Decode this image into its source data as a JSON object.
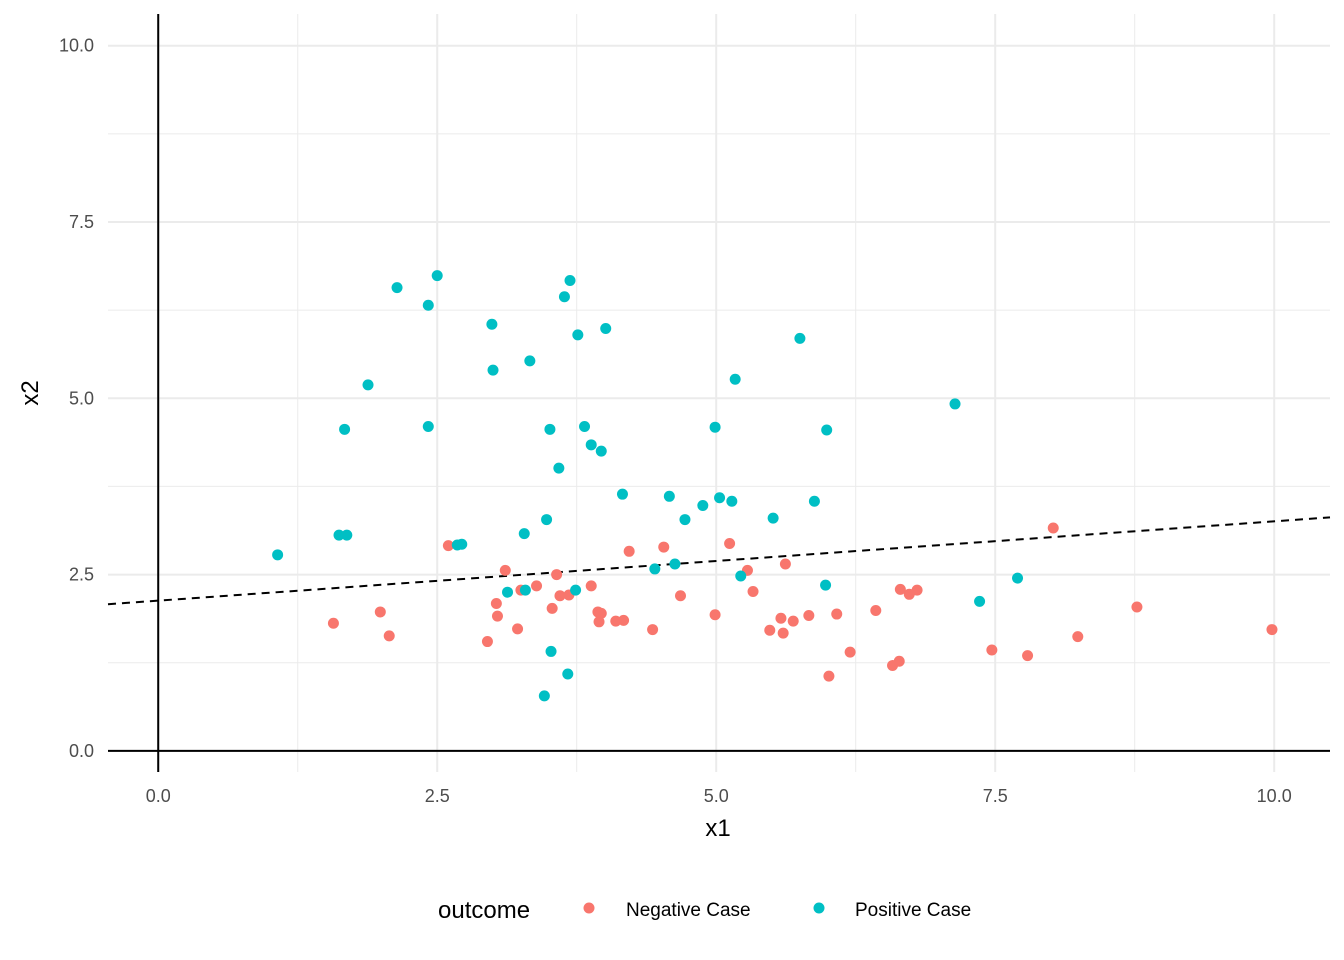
{
  "chart_data": {
    "type": "scatter",
    "title": "",
    "xlabel": "x1",
    "ylabel": "x2",
    "xlim": [
      -0.45,
      10.5
    ],
    "ylim": [
      -0.3,
      10.45
    ],
    "x_major_ticks": [
      0,
      2.5,
      5,
      7.5,
      10
    ],
    "x_tick_labels": [
      "0.0",
      "2.5",
      "5.0",
      "7.5",
      "10.0"
    ],
    "y_major_ticks": [
      0,
      2.5,
      5,
      7.5,
      10
    ],
    "y_tick_labels": [
      "0.0",
      "2.5",
      "5.0",
      "7.5",
      "10.0"
    ],
    "x_minor_ticks": [
      1.25,
      3.75,
      6.25,
      8.75
    ],
    "y_minor_ticks": [
      1.25,
      3.75,
      6.25,
      8.75
    ],
    "grid": true,
    "reference_lines": {
      "x0": true,
      "y0": true
    },
    "decision_boundary": {
      "style": "dashed",
      "intercept": 2.13,
      "slope": 0.1125
    },
    "legend": {
      "title": "outcome",
      "position": "bottom",
      "entries": [
        {
          "label": "Negative Case",
          "color": "#F8766D"
        },
        {
          "label": "Positive Case",
          "color": "#00BFC4"
        }
      ]
    },
    "series": [
      {
        "name": "Negative Case",
        "color": "#F8766D",
        "points": [
          [
            1.57,
            1.81
          ],
          [
            1.99,
            1.97
          ],
          [
            2.07,
            1.63
          ],
          [
            2.6,
            2.91
          ],
          [
            2.95,
            1.55
          ],
          [
            3.03,
            2.09
          ],
          [
            3.04,
            1.91
          ],
          [
            3.11,
            2.56
          ],
          [
            3.22,
            1.73
          ],
          [
            3.25,
            2.28
          ],
          [
            3.39,
            2.34
          ],
          [
            3.53,
            2.02
          ],
          [
            3.57,
            2.5
          ],
          [
            3.6,
            2.2
          ],
          [
            3.68,
            2.21
          ],
          [
            3.88,
            2.34
          ],
          [
            3.94,
            1.97
          ],
          [
            3.95,
            1.83
          ],
          [
            3.97,
            1.95
          ],
          [
            4.1,
            1.84
          ],
          [
            4.17,
            1.85
          ],
          [
            4.22,
            2.83
          ],
          [
            4.43,
            1.72
          ],
          [
            4.53,
            2.89
          ],
          [
            4.68,
            2.2
          ],
          [
            4.99,
            1.93
          ],
          [
            5.12,
            2.94
          ],
          [
            5.28,
            2.56
          ],
          [
            5.33,
            2.26
          ],
          [
            5.48,
            1.71
          ],
          [
            5.58,
            1.88
          ],
          [
            5.6,
            1.67
          ],
          [
            5.62,
            2.65
          ],
          [
            5.69,
            1.84
          ],
          [
            5.83,
            1.92
          ],
          [
            6.01,
            1.06
          ],
          [
            6.08,
            1.94
          ],
          [
            6.2,
            1.4
          ],
          [
            6.43,
            1.99
          ],
          [
            6.58,
            1.21
          ],
          [
            6.64,
            1.27
          ],
          [
            6.65,
            2.29
          ],
          [
            6.73,
            2.22
          ],
          [
            6.8,
            2.28
          ],
          [
            7.47,
            1.43
          ],
          [
            7.79,
            1.35
          ],
          [
            8.02,
            3.16
          ],
          [
            8.24,
            1.62
          ],
          [
            8.77,
            2.04
          ],
          [
            9.98,
            1.72
          ]
        ]
      },
      {
        "name": "Positive Case",
        "color": "#00BFC4",
        "points": [
          [
            1.07,
            2.78
          ],
          [
            1.62,
            3.06
          ],
          [
            1.67,
            4.56
          ],
          [
            1.69,
            3.06
          ],
          [
            1.88,
            5.19
          ],
          [
            2.14,
            6.57
          ],
          [
            2.42,
            6.32
          ],
          [
            2.42,
            4.6
          ],
          [
            2.5,
            6.74
          ],
          [
            2.68,
            2.92
          ],
          [
            2.72,
            2.93
          ],
          [
            2.99,
            6.05
          ],
          [
            3.0,
            5.4
          ],
          [
            3.13,
            2.25
          ],
          [
            3.28,
            3.08
          ],
          [
            3.29,
            2.28
          ],
          [
            3.33,
            5.53
          ],
          [
            3.46,
            0.78
          ],
          [
            3.48,
            3.28
          ],
          [
            3.51,
            4.56
          ],
          [
            3.52,
            1.41
          ],
          [
            3.59,
            4.01
          ],
          [
            3.64,
            6.44
          ],
          [
            3.67,
            1.09
          ],
          [
            3.69,
            6.67
          ],
          [
            3.74,
            2.28
          ],
          [
            3.76,
            5.9
          ],
          [
            3.82,
            4.6
          ],
          [
            3.88,
            4.34
          ],
          [
            3.97,
            4.25
          ],
          [
            4.01,
            5.99
          ],
          [
            4.16,
            3.64
          ],
          [
            4.45,
            2.58
          ],
          [
            4.58,
            3.61
          ],
          [
            4.63,
            2.65
          ],
          [
            4.72,
            3.28
          ],
          [
            4.88,
            3.48
          ],
          [
            4.99,
            4.59
          ],
          [
            5.03,
            3.59
          ],
          [
            5.14,
            3.54
          ],
          [
            5.17,
            5.27
          ],
          [
            5.22,
            2.48
          ],
          [
            5.51,
            3.3
          ],
          [
            5.75,
            5.85
          ],
          [
            5.88,
            3.54
          ],
          [
            5.98,
            2.35
          ],
          [
            5.99,
            4.55
          ],
          [
            7.14,
            4.92
          ],
          [
            7.36,
            2.12
          ],
          [
            7.7,
            2.45
          ]
        ]
      }
    ]
  }
}
